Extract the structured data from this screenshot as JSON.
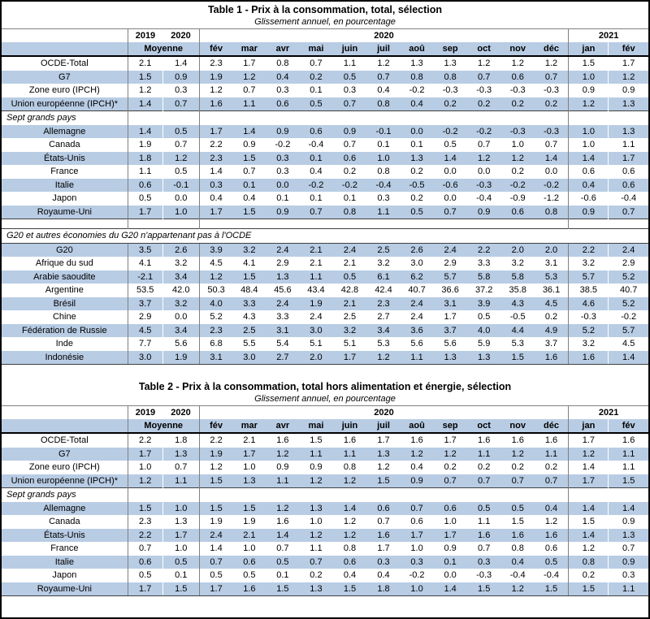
{
  "colors": {
    "stripe_blue": "#b8cce4",
    "thick_rule": "#000000",
    "thin_rule": "#404040"
  },
  "columns": {
    "avg_years": [
      "2019",
      "2020"
    ],
    "avg_label": "Moyenne",
    "year_2020_label": "2020",
    "year_2021_label": "2021",
    "months_2020": [
      "fév",
      "mar",
      "avr",
      "mai",
      "juin",
      "juil",
      "aoû",
      "sep",
      "oct",
      "nov",
      "déc"
    ],
    "months_2021": [
      "jan",
      "fév"
    ]
  },
  "tables": [
    {
      "title": "Table 1 - Prix à la consommation, total, sélection",
      "subtitle": "Glissement annuel, en pourcentage",
      "sections": [
        {
          "header": null,
          "header_style": null,
          "spacer_before": false,
          "first_row_striped": false,
          "rows": [
            {
              "label": "OCDE-Total",
              "indent": 0,
              "values": [
                "2.1",
                "1.4",
                "2.3",
                "1.7",
                "0.8",
                "0.7",
                "1.1",
                "1.2",
                "1.3",
                "1.3",
                "1.2",
                "1.2",
                "1.2",
                "1.5",
                "1.7"
              ]
            },
            {
              "label": "G7",
              "indent": 0,
              "values": [
                "1.5",
                "0.9",
                "1.9",
                "1.2",
                "0.4",
                "0.2",
                "0.5",
                "0.7",
                "0.8",
                "0.8",
                "0.7",
                "0.6",
                "0.7",
                "1.0",
                "1.2"
              ]
            },
            {
              "label": "Zone euro (IPCH)",
              "indent": 0,
              "values": [
                "1.2",
                "0.3",
                "1.2",
                "0.7",
                "0.3",
                "0.1",
                "0.3",
                "0.4",
                "-0.2",
                "-0.3",
                "-0.3",
                "-0.3",
                "-0.3",
                "0.9",
                "0.9"
              ]
            },
            {
              "label": "Union européenne (IPCH)*",
              "indent": 0,
              "values": [
                "1.4",
                "0.7",
                "1.6",
                "1.1",
                "0.6",
                "0.5",
                "0.7",
                "0.8",
                "0.4",
                "0.2",
                "0.2",
                "0.2",
                "0.2",
                "1.2",
                "1.3"
              ]
            }
          ]
        },
        {
          "header": "Sept grands pays",
          "header_style": "cells",
          "spacer_before": false,
          "first_row_striped": true,
          "rows": [
            {
              "label": "Allemagne",
              "indent": 1,
              "values": [
                "1.4",
                "0.5",
                "1.7",
                "1.4",
                "0.9",
                "0.6",
                "0.9",
                "-0.1",
                "0.0",
                "-0.2",
                "-0.2",
                "-0.3",
                "-0.3",
                "1.0",
                "1.3"
              ]
            },
            {
              "label": "Canada",
              "indent": 1,
              "values": [
                "1.9",
                "0.7",
                "2.2",
                "0.9",
                "-0.2",
                "-0.4",
                "0.7",
                "0.1",
                "0.1",
                "0.5",
                "0.7",
                "1.0",
                "0.7",
                "1.0",
                "1.1"
              ]
            },
            {
              "label": "États-Unis",
              "indent": 1,
              "values": [
                "1.8",
                "1.2",
                "2.3",
                "1.5",
                "0.3",
                "0.1",
                "0.6",
                "1.0",
                "1.3",
                "1.4",
                "1.2",
                "1.2",
                "1.4",
                "1.4",
                "1.7"
              ]
            },
            {
              "label": "France",
              "indent": 1,
              "values": [
                "1.1",
                "0.5",
                "1.4",
                "0.7",
                "0.3",
                "0.4",
                "0.2",
                "0.8",
                "0.2",
                "0.0",
                "0.0",
                "0.2",
                "0.0",
                "0.6",
                "0.6"
              ]
            },
            {
              "label": "Italie",
              "indent": 1,
              "values": [
                "0.6",
                "-0.1",
                "0.3",
                "0.1",
                "0.0",
                "-0.2",
                "-0.2",
                "-0.4",
                "-0.5",
                "-0.6",
                "-0.3",
                "-0.2",
                "-0.2",
                "0.4",
                "0.6"
              ]
            },
            {
              "label": "Japon",
              "indent": 1,
              "values": [
                "0.5",
                "0.0",
                "0.4",
                "0.4",
                "0.1",
                "0.1",
                "0.1",
                "0.3",
                "0.2",
                "0.0",
                "-0.4",
                "-0.9",
                "-1.2",
                "-0.6",
                "-0.4"
              ]
            },
            {
              "label": "Royaume-Uni",
              "indent": 1,
              "values": [
                "1.7",
                "1.0",
                "1.7",
                "1.5",
                "0.9",
                "0.7",
                "0.8",
                "1.1",
                "0.5",
                "0.7",
                "0.9",
                "0.6",
                "0.8",
                "0.9",
                "0.7"
              ]
            }
          ]
        },
        {
          "header": "G20 et autres économies du G20 n'appartenant pas à l'OCDE",
          "header_style": "merged",
          "spacer_before": true,
          "first_row_striped": true,
          "rows": [
            {
              "label": "G20",
              "indent": 0,
              "values": [
                "3.5",
                "2.6",
                "3.9",
                "3.2",
                "2.4",
                "2.1",
                "2.4",
                "2.5",
                "2.6",
                "2.4",
                "2.2",
                "2.0",
                "2.0",
                "2.2",
                "2.4"
              ]
            },
            {
              "label": "Afrique du sud",
              "indent": 1,
              "values": [
                "4.1",
                "3.2",
                "4.5",
                "4.1",
                "2.9",
                "2.1",
                "2.1",
                "3.2",
                "3.0",
                "2.9",
                "3.3",
                "3.2",
                "3.1",
                "3.2",
                "2.9"
              ]
            },
            {
              "label": "Arabie saoudite",
              "indent": 1,
              "values": [
                "-2.1",
                "3.4",
                "1.2",
                "1.5",
                "1.3",
                "1.1",
                "0.5",
                "6.1",
                "6.2",
                "5.7",
                "5.8",
                "5.8",
                "5.3",
                "5.7",
                "5.2"
              ]
            },
            {
              "label": "Argentine",
              "indent": 1,
              "values": [
                "53.5",
                "42.0",
                "50.3",
                "48.4",
                "45.6",
                "43.4",
                "42.8",
                "42.4",
                "40.7",
                "36.6",
                "37.2",
                "35.8",
                "36.1",
                "38.5",
                "40.7"
              ]
            },
            {
              "label": "Brésil",
              "indent": 1,
              "values": [
                "3.7",
                "3.2",
                "4.0",
                "3.3",
                "2.4",
                "1.9",
                "2.1",
                "2.3",
                "2.4",
                "3.1",
                "3.9",
                "4.3",
                "4.5",
                "4.6",
                "5.2"
              ]
            },
            {
              "label": "Chine",
              "indent": 1,
              "values": [
                "2.9",
                "0.0",
                "5.2",
                "4.3",
                "3.3",
                "2.4",
                "2.5",
                "2.7",
                "2.4",
                "1.7",
                "0.5",
                "-0.5",
                "0.2",
                "-0.3",
                "-0.2"
              ]
            },
            {
              "label": "Fédération de Russie",
              "indent": 1,
              "values": [
                "4.5",
                "3.4",
                "2.3",
                "2.5",
                "3.1",
                "3.0",
                "3.2",
                "3.4",
                "3.6",
                "3.7",
                "4.0",
                "4.4",
                "4.9",
                "5.2",
                "5.7"
              ]
            },
            {
              "label": "Inde",
              "indent": 1,
              "values": [
                "7.7",
                "5.6",
                "6.8",
                "5.5",
                "5.4",
                "5.1",
                "5.1",
                "5.3",
                "5.6",
                "5.6",
                "5.9",
                "5.3",
                "3.7",
                "3.2",
                "4.5"
              ]
            },
            {
              "label": "Indonésie",
              "indent": 1,
              "values": [
                "3.0",
                "1.9",
                "3.1",
                "3.0",
                "2.7",
                "2.0",
                "1.7",
                "1.2",
                "1.1",
                "1.3",
                "1.3",
                "1.5",
                "1.6",
                "1.6",
                "1.4"
              ]
            }
          ]
        }
      ]
    },
    {
      "title": "Table 2 - Prix à la consommation, total hors alimentation et énergie, sélection",
      "subtitle": "Glissement annuel, en pourcentage",
      "sections": [
        {
          "header": null,
          "header_style": null,
          "spacer_before": false,
          "first_row_striped": false,
          "rows": [
            {
              "label": "OCDE-Total",
              "indent": 0,
              "values": [
                "2.2",
                "1.8",
                "2.2",
                "2.1",
                "1.6",
                "1.5",
                "1.6",
                "1.7",
                "1.6",
                "1.7",
                "1.6",
                "1.6",
                "1.6",
                "1.7",
                "1.6"
              ]
            },
            {
              "label": "G7",
              "indent": 0,
              "values": [
                "1.7",
                "1.3",
                "1.9",
                "1.7",
                "1.2",
                "1.1",
                "1.1",
                "1.3",
                "1.2",
                "1.2",
                "1.1",
                "1.2",
                "1.1",
                "1.2",
                "1.1"
              ]
            },
            {
              "label": "Zone euro (IPCH)",
              "indent": 0,
              "values": [
                "1.0",
                "0.7",
                "1.2",
                "1.0",
                "0.9",
                "0.9",
                "0.8",
                "1.2",
                "0.4",
                "0.2",
                "0.2",
                "0.2",
                "0.2",
                "1.4",
                "1.1"
              ]
            },
            {
              "label": "Union européenne (IPCH)*",
              "indent": 0,
              "values": [
                "1.2",
                "1.1",
                "1.5",
                "1.3",
                "1.1",
                "1.2",
                "1.2",
                "1.5",
                "0.9",
                "0.7",
                "0.7",
                "0.7",
                "0.7",
                "1.7",
                "1.5"
              ]
            }
          ]
        },
        {
          "header": "Sept grands pays",
          "header_style": "cells",
          "spacer_before": false,
          "first_row_striped": true,
          "rows": [
            {
              "label": "Allemagne",
              "indent": 1,
              "values": [
                "1.5",
                "1.0",
                "1.5",
                "1.5",
                "1.2",
                "1.3",
                "1.4",
                "0.6",
                "0.7",
                "0.6",
                "0.5",
                "0.5",
                "0.4",
                "1.4",
                "1.4"
              ]
            },
            {
              "label": "Canada",
              "indent": 1,
              "values": [
                "2.3",
                "1.3",
                "1.9",
                "1.9",
                "1.6",
                "1.0",
                "1.2",
                "0.7",
                "0.6",
                "1.0",
                "1.1",
                "1.5",
                "1.2",
                "1.5",
                "0.9"
              ]
            },
            {
              "label": "États-Unis",
              "indent": 1,
              "values": [
                "2.2",
                "1.7",
                "2.4",
                "2.1",
                "1.4",
                "1.2",
                "1.2",
                "1.6",
                "1.7",
                "1.7",
                "1.6",
                "1.6",
                "1.6",
                "1.4",
                "1.3"
              ]
            },
            {
              "label": "France",
              "indent": 1,
              "values": [
                "0.7",
                "1.0",
                "1.4",
                "1.0",
                "0.7",
                "1.1",
                "0.8",
                "1.7",
                "1.0",
                "0.9",
                "0.7",
                "0.8",
                "0.6",
                "1.2",
                "0.7"
              ]
            },
            {
              "label": "Italie",
              "indent": 1,
              "values": [
                "0.6",
                "0.5",
                "0.7",
                "0.6",
                "0.5",
                "0.7",
                "0.6",
                "0.3",
                "0.3",
                "0.1",
                "0.3",
                "0.4",
                "0.5",
                "0.8",
                "0.9"
              ]
            },
            {
              "label": "Japon",
              "indent": 1,
              "values": [
                "0.5",
                "0.1",
                "0.5",
                "0.5",
                "0.1",
                "0.2",
                "0.4",
                "0.4",
                "-0.2",
                "0.0",
                "-0.3",
                "-0.4",
                "-0.4",
                "0.2",
                "0.3"
              ]
            },
            {
              "label": "Royaume-Uni",
              "indent": 1,
              "values": [
                "1.7",
                "1.5",
                "1.7",
                "1.6",
                "1.5",
                "1.3",
                "1.5",
                "1.8",
                "1.0",
                "1.4",
                "1.5",
                "1.2",
                "1.5",
                "1.5",
                "1.1"
              ]
            }
          ]
        }
      ]
    }
  ]
}
